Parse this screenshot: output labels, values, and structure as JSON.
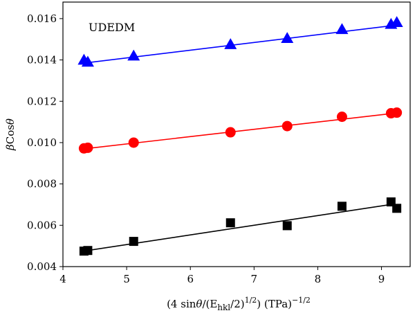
{
  "chart_data": {
    "type": "scatter",
    "title": "",
    "annotation": "UDEDM",
    "xlabel": {
      "prefix": "(4 sin",
      "theta": "θ",
      "mid": "/(E",
      "sub": "hkl",
      "mid2": "/2)",
      "sup1": "1/2",
      "mid3": ") (TPa)",
      "sup2": "−1/2"
    },
    "ylabel": {
      "beta": "β",
      "cos": "Cos",
      "theta": "θ"
    },
    "xlim": [
      4.0,
      9.45
    ],
    "ylim": [
      0.004,
      0.0168
    ],
    "xticks": [
      "4",
      "5",
      "6",
      "7",
      "8",
      "9"
    ],
    "yticks": [
      "0.004",
      "0.006",
      "0.008",
      "0.010",
      "0.012",
      "0.014",
      "0.016"
    ],
    "grid": false,
    "series": [
      {
        "marker": "triangle",
        "color": "#0000ff",
        "x": [
          4.33,
          4.39,
          5.11,
          6.63,
          7.52,
          8.38,
          9.15,
          9.24
        ],
        "y": [
          0.014,
          0.0139,
          0.0142,
          0.01475,
          0.01505,
          0.01548,
          0.01573,
          0.01582
        ],
        "fit": {
          "x": [
            4.39,
            9.2
          ],
          "y": [
            0.01387,
            0.01567
          ]
        }
      },
      {
        "marker": "circle",
        "color": "#ff0000",
        "x": [
          4.33,
          4.39,
          5.11,
          6.63,
          7.52,
          8.38,
          9.15,
          9.24
        ],
        "y": [
          0.00972,
          0.00975,
          0.01,
          0.0105,
          0.0108,
          0.01125,
          0.01142,
          0.01145
        ],
        "fit": {
          "x": [
            4.39,
            9.2
          ],
          "y": [
            0.00972,
            0.01142
          ]
        }
      },
      {
        "marker": "square",
        "color": "#000000",
        "x": [
          4.33,
          4.39,
          5.11,
          6.63,
          7.52,
          8.38,
          9.15,
          9.24
        ],
        "y": [
          0.00475,
          0.00478,
          0.00522,
          0.00612,
          0.00598,
          0.00692,
          0.00713,
          0.00682
        ],
        "fit": {
          "x": [
            4.39,
            9.2
          ],
          "y": [
            0.00478,
            0.00703
          ]
        }
      }
    ]
  }
}
